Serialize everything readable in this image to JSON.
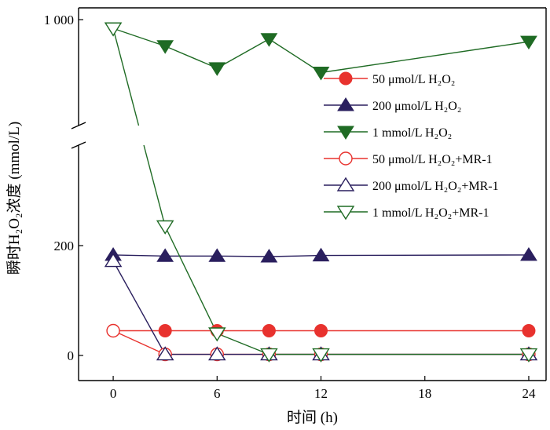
{
  "chart_data": {
    "type": "line",
    "xlabel": "时间 (h)",
    "ylabel": "瞬时H₂O₂浓度 (mmol/L)",
    "x_ticks": [
      "0",
      "6",
      "12",
      "18",
      "24"
    ],
    "y_ticks_lower": [
      "0",
      "200"
    ],
    "y_ticks_upper": [
      "1 000"
    ],
    "y_axis_break": true,
    "x_range": [
      -2,
      25
    ],
    "legend_position": "right",
    "x": [
      0,
      3,
      6,
      9,
      12,
      24
    ],
    "series": [
      {
        "name": "50 μmol/L H₂O₂",
        "marker": "circle-filled",
        "color": "#e8322e",
        "values": [
          45,
          45,
          45,
          45,
          45,
          45
        ]
      },
      {
        "name": "200 μmol/L H₂O₂",
        "marker": "triangle-up-filled",
        "color": "#2a1f5e",
        "values": [
          183,
          181,
          181,
          180,
          182,
          183
        ]
      },
      {
        "name": "1 mmol/L H₂O₂",
        "marker": "triangle-down-filled",
        "color": "#1f6b24",
        "values": [
          990,
          970,
          945,
          978,
          940,
          975
        ]
      },
      {
        "name": "50 μmol/L H₂O₂+MR-1",
        "marker": "circle-open",
        "color": "#e8322e",
        "values": [
          45,
          2,
          2,
          2,
          2,
          2
        ]
      },
      {
        "name": "200 μmol/L H₂O₂+MR-1",
        "marker": "triangle-up-open",
        "color": "#2a1f5e",
        "values": [
          172,
          2,
          2,
          2,
          2,
          2
        ]
      },
      {
        "name": "1 mmol/L H₂O₂+MR-1",
        "marker": "triangle-down-open",
        "color": "#1f6b24",
        "values": [
          990,
          235,
          40,
          2,
          2,
          2
        ]
      }
    ]
  }
}
